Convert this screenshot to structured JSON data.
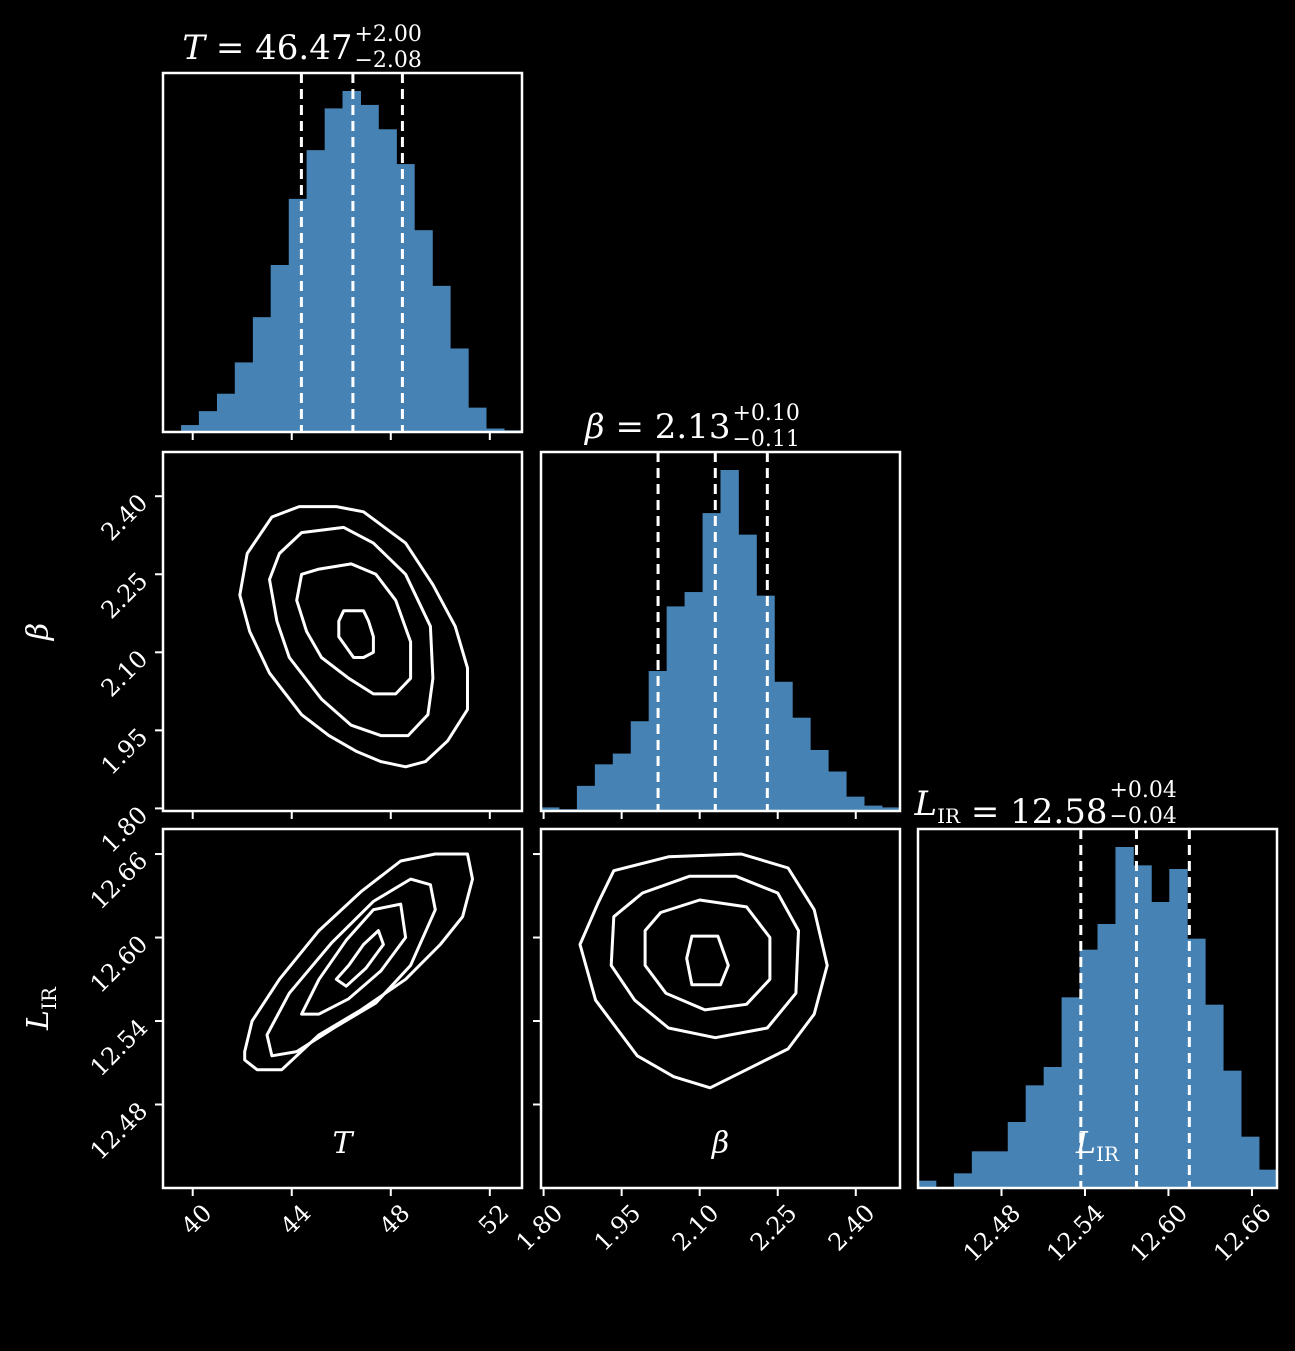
{
  "colors": {
    "background": "#000000",
    "foreground": "#ffffff",
    "histogram_fill": "#4682b4",
    "quantile_lines": "#ffffff",
    "contours": "#ffffff"
  },
  "chart_data": {
    "type": "corner",
    "parameters": [
      {
        "key": "T",
        "symbol": "T",
        "subscript": "",
        "label": "T",
        "median": "46.47",
        "err_plus": "+2.00",
        "err_minus": "−2.08",
        "range": [
          38.8,
          53.3
        ],
        "ticks": [
          "40",
          "44",
          "48",
          "52"
        ],
        "quantiles": [
          44.39,
          46.47,
          48.47
        ],
        "hist_bin_edges": [
          38.8,
          39.53,
          40.25,
          40.98,
          41.7,
          42.43,
          43.15,
          43.88,
          44.6,
          45.33,
          46.05,
          46.78,
          47.5,
          48.23,
          48.95,
          49.68,
          50.4,
          51.13,
          51.85,
          52.58,
          53.3
        ],
        "hist_counts": [
          0,
          0.02,
          0.06,
          0.11,
          0.2,
          0.33,
          0.48,
          0.67,
          0.81,
          0.93,
          0.98,
          0.94,
          0.87,
          0.77,
          0.58,
          0.42,
          0.24,
          0.07,
          0.01,
          0.005
        ]
      },
      {
        "key": "beta",
        "symbol": "β",
        "subscript": "",
        "label": "β",
        "median": "2.13",
        "err_plus": "+0.10",
        "err_minus": "−0.11",
        "range": [
          1.795,
          2.485
        ],
        "ticks": [
          "1.80",
          "1.95",
          "2.10",
          "2.25",
          "2.40"
        ],
        "quantiles": [
          2.02,
          2.13,
          2.23
        ],
        "hist_bin_edges": [
          1.795,
          1.8295,
          1.864,
          1.8985,
          1.933,
          1.9675,
          2.002,
          2.0365,
          2.071,
          2.1055,
          2.14,
          2.1745,
          2.209,
          2.2435,
          2.278,
          2.3125,
          2.347,
          2.3815,
          2.416,
          2.4505,
          2.485
        ],
        "hist_counts": [
          0.01,
          0.005,
          0.07,
          0.13,
          0.16,
          0.25,
          0.39,
          0.57,
          0.61,
          0.83,
          0.95,
          0.77,
          0.6,
          0.36,
          0.26,
          0.17,
          0.11,
          0.04,
          0.015,
          0.01
        ]
      },
      {
        "key": "LIR",
        "symbol": "L",
        "subscript": "IR",
        "label": "L_IR",
        "median": "12.58",
        "err_plus": "+0.04",
        "err_minus": "−0.04",
        "range": [
          12.42,
          12.678
        ],
        "ticks": [
          "12.48",
          "12.54",
          "12.60",
          "12.66"
        ],
        "quantiles": [
          12.537,
          12.577,
          12.615
        ],
        "hist_bin_edges": [
          12.42,
          12.4329,
          12.4458,
          12.4587,
          12.4716,
          12.4845,
          12.4974,
          12.5103,
          12.5232,
          12.5361,
          12.549,
          12.5619,
          12.5748,
          12.5877,
          12.6006,
          12.6135,
          12.6264,
          12.6393,
          12.6522,
          12.6651,
          12.678
        ],
        "hist_counts": [
          0.02,
          0.0,
          0.04,
          0.1,
          0.1,
          0.18,
          0.28,
          0.33,
          0.52,
          0.65,
          0.72,
          0.93,
          0.88,
          0.78,
          0.87,
          0.68,
          0.5,
          0.32,
          0.14,
          0.05
        ]
      }
    ],
    "contours_2d": [
      {
        "x_param": "T",
        "y_param": "beta",
        "levels": [
          [
            [
              46.4,
              2.18
            ],
            [
              46.9,
              2.18
            ],
            [
              47.1,
              2.16
            ],
            [
              47.3,
              2.13
            ],
            [
              47.3,
              2.1
            ],
            [
              46.9,
              2.09
            ],
            [
              46.5,
              2.09
            ],
            [
              46.2,
              2.11
            ],
            [
              45.9,
              2.13
            ],
            [
              45.9,
              2.16
            ],
            [
              46.1,
              2.18
            ]
          ],
          [
            [
              45.1,
              2.26
            ],
            [
              46.4,
              2.27
            ],
            [
              47.4,
              2.25
            ],
            [
              48.2,
              2.2
            ],
            [
              48.8,
              2.12
            ],
            [
              48.8,
              2.05
            ],
            [
              48.2,
              2.02
            ],
            [
              47.3,
              2.02
            ],
            [
              46.3,
              2.05
            ],
            [
              45.2,
              2.09
            ],
            [
              44.6,
              2.14
            ],
            [
              44.2,
              2.2
            ],
            [
              44.4,
              2.25
            ]
          ],
          [
            [
              44.4,
              2.33
            ],
            [
              46.1,
              2.34
            ],
            [
              47.3,
              2.31
            ],
            [
              48.6,
              2.25
            ],
            [
              49.6,
              2.15
            ],
            [
              49.7,
              2.05
            ],
            [
              49.5,
              1.98
            ],
            [
              48.7,
              1.94
            ],
            [
              47.6,
              1.94
            ],
            [
              46.4,
              1.96
            ],
            [
              45.2,
              2.01
            ],
            [
              43.9,
              2.09
            ],
            [
              43.4,
              2.16
            ],
            [
              43.1,
              2.24
            ],
            [
              43.5,
              2.29
            ]
          ],
          [
            [
              43.2,
              2.36
            ],
            [
              44.3,
              2.38
            ],
            [
              45.8,
              2.38
            ],
            [
              46.9,
              2.37
            ],
            [
              48.6,
              2.31
            ],
            [
              49.7,
              2.23
            ],
            [
              50.6,
              2.15
            ],
            [
              51.1,
              2.07
            ],
            [
              51.1,
              1.99
            ],
            [
              50.3,
              1.93
            ],
            [
              49.4,
              1.89
            ],
            [
              48.6,
              1.88
            ],
            [
              47.6,
              1.89
            ],
            [
              46.6,
              1.91
            ],
            [
              45.5,
              1.94
            ],
            [
              44.4,
              1.98
            ],
            [
              43.1,
              2.06
            ],
            [
              42.3,
              2.14
            ],
            [
              41.9,
              2.21
            ],
            [
              42.2,
              2.29
            ]
          ]
        ]
      },
      {
        "x_param": "T",
        "y_param": "LIR",
        "levels": [
          [
            [
              45.8,
              12.57
            ],
            [
              46.3,
              12.58
            ],
            [
              46.9,
              12.595
            ],
            [
              47.5,
              12.605
            ],
            [
              47.7,
              12.595
            ],
            [
              47.0,
              12.578
            ],
            [
              46.2,
              12.565
            ]
          ],
          [
            [
              44.4,
              12.545
            ],
            [
              45.1,
              12.57
            ],
            [
              46.2,
              12.598
            ],
            [
              47.3,
              12.62
            ],
            [
              48.4,
              12.624
            ],
            [
              48.6,
              12.6
            ],
            [
              47.6,
              12.576
            ],
            [
              46.3,
              12.556
            ],
            [
              45.1,
              12.545
            ]
          ],
          [
            [
              43.0,
              12.53
            ],
            [
              43.9,
              12.56
            ],
            [
              45.6,
              12.596
            ],
            [
              47.3,
              12.626
            ],
            [
              48.8,
              12.642
            ],
            [
              49.6,
              12.638
            ],
            [
              49.8,
              12.62
            ],
            [
              48.8,
              12.58
            ],
            [
              47.4,
              12.553
            ],
            [
              45.7,
              12.535
            ],
            [
              44.2,
              12.518
            ],
            [
              43.2,
              12.515
            ]
          ],
          [
            [
              42.1,
              12.518
            ],
            [
              42.4,
              12.54
            ],
            [
              43.5,
              12.57
            ],
            [
              45.1,
              12.605
            ],
            [
              46.8,
              12.633
            ],
            [
              48.4,
              12.655
            ],
            [
              49.8,
              12.66
            ],
            [
              51.1,
              12.66
            ],
            [
              51.3,
              12.642
            ],
            [
              50.9,
              12.615
            ],
            [
              50.0,
              12.595
            ],
            [
              48.6,
              12.57
            ],
            [
              46.8,
              12.548
            ],
            [
              45.1,
              12.53
            ],
            [
              43.6,
              12.505
            ],
            [
              42.6,
              12.505
            ],
            [
              42.1,
              12.512
            ]
          ]
        ]
      },
      {
        "x_param": "beta",
        "y_param": "LIR",
        "levels": [
          [
            [
              2.085,
              12.601
            ],
            [
              2.135,
              12.601
            ],
            [
              2.155,
              12.58
            ],
            [
              2.14,
              12.566
            ],
            [
              2.085,
              12.566
            ],
            [
              2.075,
              12.585
            ]
          ],
          [
            [
              2.025,
              12.618
            ],
            [
              2.1,
              12.627
            ],
            [
              2.19,
              12.622
            ],
            [
              2.235,
              12.6
            ],
            [
              2.235,
              12.57
            ],
            [
              2.19,
              12.552
            ],
            [
              2.11,
              12.548
            ],
            [
              2.035,
              12.56
            ],
            [
              1.995,
              12.58
            ],
            [
              1.995,
              12.605
            ]
          ],
          [
            [
              1.99,
              12.632
            ],
            [
              2.08,
              12.644
            ],
            [
              2.17,
              12.644
            ],
            [
              2.25,
              12.632
            ],
            [
              2.29,
              12.605
            ],
            [
              2.285,
              12.56
            ],
            [
              2.23,
              12.535
            ],
            [
              2.13,
              12.528
            ],
            [
              2.04,
              12.535
            ],
            [
              1.975,
              12.555
            ],
            [
              1.93,
              12.58
            ],
            [
              1.935,
              12.615
            ]
          ],
          [
            [
              1.935,
              12.648
            ],
            [
              2.04,
              12.658
            ],
            [
              2.18,
              12.66
            ],
            [
              2.27,
              12.65
            ],
            [
              2.32,
              12.62
            ],
            [
              2.345,
              12.58
            ],
            [
              2.32,
              12.545
            ],
            [
              2.27,
              12.52
            ],
            [
              2.19,
              12.505
            ],
            [
              2.12,
              12.492
            ],
            [
              2.05,
              12.5
            ],
            [
              1.98,
              12.515
            ],
            [
              1.9,
              12.555
            ],
            [
              1.87,
              12.595
            ],
            [
              1.905,
              12.625
            ]
          ]
        ]
      }
    ]
  }
}
